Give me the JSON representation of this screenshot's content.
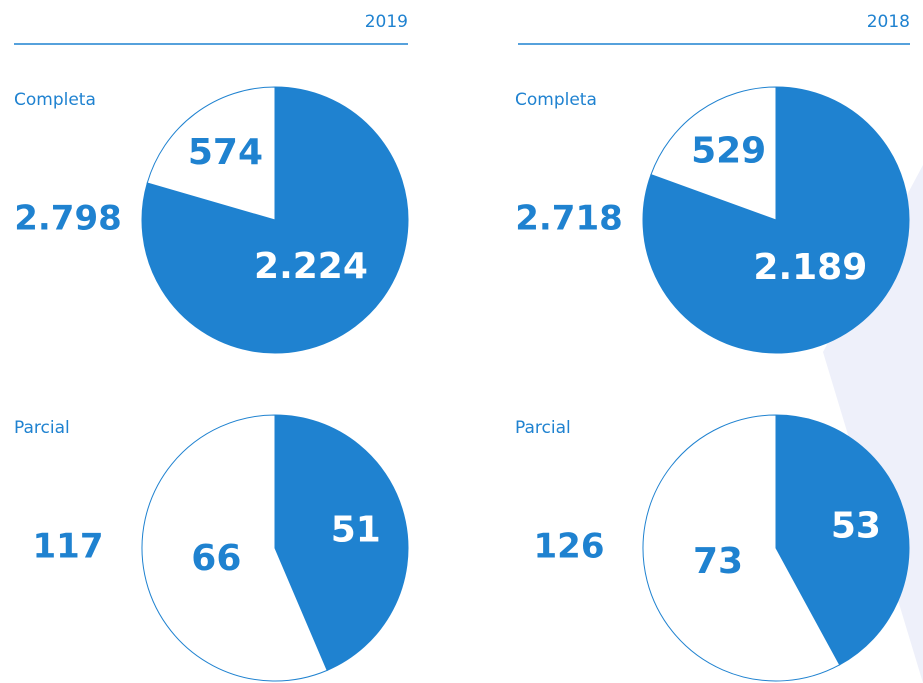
{
  "headers": [
    "2019",
    "2018"
  ],
  "chart_data": [
    {
      "type": "pie",
      "title": "Completa",
      "annotation": "2.798",
      "categories": [
        null,
        null
      ],
      "values": [
        2224,
        574
      ],
      "value_labels": [
        "2.224",
        "574"
      ],
      "colors": [
        "#1f82d0",
        "#ffffff"
      ]
    },
    {
      "type": "pie",
      "title": "Completa",
      "annotation": "2.718",
      "categories": [
        null,
        null
      ],
      "values": [
        2189,
        529
      ],
      "value_labels": [
        "2.189",
        "529"
      ],
      "colors": [
        "#1f82d0",
        "#ffffff"
      ]
    },
    {
      "type": "pie",
      "title": "Parcial",
      "annotation": "117",
      "categories": [
        null,
        null
      ],
      "values": [
        51,
        66
      ],
      "value_labels": [
        "51",
        "66"
      ],
      "colors": [
        "#1f82d0",
        "#ffffff"
      ]
    },
    {
      "type": "pie",
      "title": "Parcial",
      "annotation": "126",
      "categories": [
        null,
        null
      ],
      "values": [
        53,
        73
      ],
      "value_labels": [
        "53",
        "73"
      ],
      "colors": [
        "#1f82d0",
        "#ffffff"
      ]
    }
  ]
}
